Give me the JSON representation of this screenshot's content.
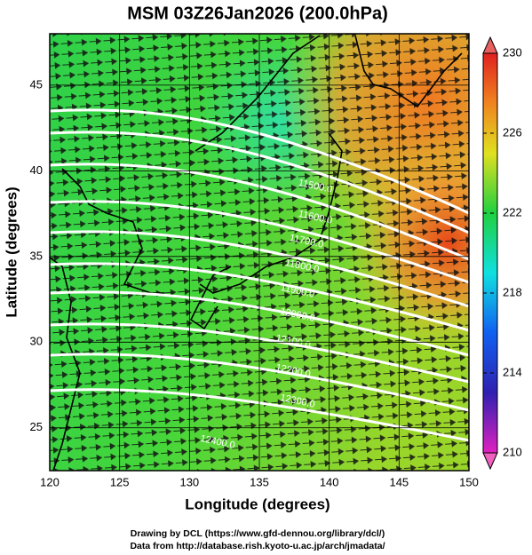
{
  "header": {
    "title": "MSM 03Z26Jan2026 (200.0hPa)"
  },
  "axes": {
    "x_label": "Longitude (degrees)",
    "y_label": "Latitude  (degrees)",
    "xlim": [
      120,
      150
    ],
    "ylim": [
      22.5,
      48
    ],
    "xticks": [
      120,
      125,
      130,
      135,
      140,
      145,
      150
    ],
    "yticks": [
      25,
      30,
      35,
      40,
      45
    ]
  },
  "colorbar": {
    "lim": [
      210,
      230
    ],
    "ticks": [
      210,
      214,
      218,
      222,
      226,
      230
    ]
  },
  "contours": [
    {
      "label": "11500.0"
    },
    {
      "label": "11600.0"
    },
    {
      "label": "11700.0"
    },
    {
      "label": "11800.0"
    },
    {
      "label": "11900.0"
    },
    {
      "label": "12000.0"
    },
    {
      "label": "12100.0"
    },
    {
      "label": "12200.0"
    },
    {
      "label": "12300.0"
    },
    {
      "label": "12400.0"
    }
  ],
  "footer": {
    "line1": "Drawing by DCL (https://www.gfd-dennou.org/library/dcl/)",
    "line2": "Data from http://database.rish.kyoto-u.ac.jp/arch/jmadata/"
  }
}
